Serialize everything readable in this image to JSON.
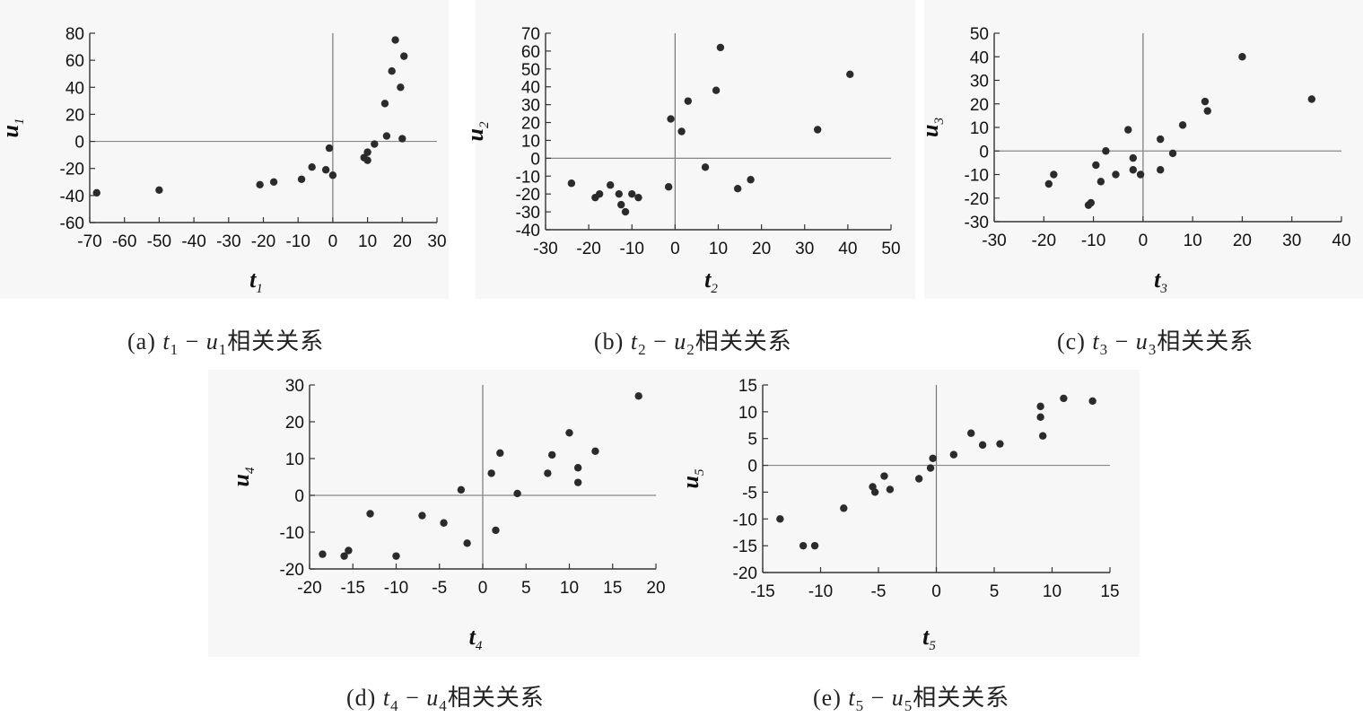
{
  "chart_data": [
    {
      "type": "scatter",
      "xlabel": "t",
      "xsub": "1",
      "ylabel": "u",
      "ysub": "1",
      "xlim": [
        -70,
        30
      ],
      "ylim": [
        -60,
        80
      ],
      "xticks": [
        -70,
        -60,
        -50,
        -40,
        -30,
        -20,
        -10,
        0,
        10,
        20,
        30
      ],
      "yticks": [
        -60,
        -40,
        -20,
        0,
        20,
        40,
        60,
        80
      ],
      "points": [
        [
          -68,
          -38
        ],
        [
          -50,
          -36
        ],
        [
          -21,
          -32
        ],
        [
          -17,
          -30
        ],
        [
          -9,
          -28
        ],
        [
          -6,
          -19
        ],
        [
          -2,
          -21
        ],
        [
          -1,
          -5
        ],
        [
          0,
          -25
        ],
        [
          9,
          -12
        ],
        [
          10,
          -14
        ],
        [
          10,
          -8
        ],
        [
          12,
          -2
        ],
        [
          15,
          28
        ],
        [
          15.5,
          4
        ],
        [
          17,
          52
        ],
        [
          18,
          75
        ],
        [
          19.5,
          40
        ],
        [
          20.5,
          63
        ],
        [
          20,
          2
        ]
      ],
      "caption_label": "(a)",
      "caption_rel": "相关关系"
    },
    {
      "type": "scatter",
      "xlabel": "t",
      "xsub": "2",
      "ylabel": "u",
      "ysub": "2",
      "xlim": [
        -30,
        50
      ],
      "ylim": [
        -40,
        70
      ],
      "xticks": [
        -30,
        -20,
        -10,
        0,
        10,
        20,
        30,
        40,
        50
      ],
      "yticks": [
        -40,
        -30,
        -20,
        -10,
        0,
        10,
        20,
        30,
        40,
        50,
        60,
        70
      ],
      "points": [
        [
          -24,
          -14
        ],
        [
          -18.5,
          -22
        ],
        [
          -17.5,
          -20
        ],
        [
          -15,
          -15
        ],
        [
          -13,
          -20
        ],
        [
          -12.5,
          -26
        ],
        [
          -11.5,
          -30
        ],
        [
          -10,
          -20
        ],
        [
          -8.5,
          -22
        ],
        [
          -1.5,
          -16
        ],
        [
          -1,
          22
        ],
        [
          1.5,
          15
        ],
        [
          3,
          32
        ],
        [
          7,
          -5
        ],
        [
          9.5,
          38
        ],
        [
          10.5,
          62
        ],
        [
          14.5,
          -17
        ],
        [
          17.5,
          -12
        ],
        [
          33,
          16
        ],
        [
          40.5,
          47
        ]
      ],
      "caption_label": "(b)",
      "caption_rel": "相关关系"
    },
    {
      "type": "scatter",
      "xlabel": "t",
      "xsub": "3",
      "ylabel": "u",
      "ysub": "3",
      "xlim": [
        -30,
        40
      ],
      "ylim": [
        -30,
        50
      ],
      "xticks": [
        -30,
        -20,
        -10,
        0,
        10,
        20,
        30,
        40
      ],
      "yticks": [
        -30,
        -20,
        -10,
        0,
        10,
        20,
        30,
        40,
        50
      ],
      "points": [
        [
          -19,
          -14
        ],
        [
          -18,
          -10
        ],
        [
          -11,
          -23
        ],
        [
          -10.5,
          -22
        ],
        [
          -9.5,
          -6
        ],
        [
          -8.5,
          -13
        ],
        [
          -7.5,
          0
        ],
        [
          -5.5,
          -10
        ],
        [
          -3,
          9
        ],
        [
          -2,
          -8
        ],
        [
          -2,
          -3
        ],
        [
          -0.5,
          -10
        ],
        [
          3.5,
          5
        ],
        [
          3.5,
          -8
        ],
        [
          6,
          -1
        ],
        [
          8,
          11
        ],
        [
          12.5,
          21
        ],
        [
          13,
          17
        ],
        [
          20,
          40
        ],
        [
          34,
          22
        ]
      ],
      "caption_label": "(c)",
      "caption_rel": "相关关系"
    },
    {
      "type": "scatter",
      "xlabel": "t",
      "xsub": "4",
      "ylabel": "u",
      "ysub": "4",
      "xlim": [
        -20,
        20
      ],
      "ylim": [
        -20,
        30
      ],
      "xticks": [
        -20,
        -15,
        -10,
        -5,
        0,
        5,
        10,
        15,
        20
      ],
      "yticks": [
        -20,
        -10,
        0,
        10,
        20,
        30
      ],
      "points": [
        [
          -18.5,
          -16
        ],
        [
          -16,
          -16.5
        ],
        [
          -15.5,
          -15
        ],
        [
          -13,
          -5
        ],
        [
          -10,
          -16.5
        ],
        [
          -7,
          -5.5
        ],
        [
          -4.5,
          -7.5
        ],
        [
          -2.5,
          1.5
        ],
        [
          -1.8,
          -13
        ],
        [
          1,
          6
        ],
        [
          1.5,
          -9.5
        ],
        [
          2,
          11.5
        ],
        [
          4,
          0.5
        ],
        [
          7.5,
          6
        ],
        [
          8,
          11
        ],
        [
          10,
          17
        ],
        [
          11,
          7.5
        ],
        [
          11,
          3.5
        ],
        [
          13,
          12
        ],
        [
          18,
          27
        ]
      ],
      "caption_label": "(d)",
      "caption_rel": "相关关系"
    },
    {
      "type": "scatter",
      "xlabel": "t",
      "xsub": "5",
      "ylabel": "u",
      "ysub": "5",
      "xlim": [
        -15,
        15
      ],
      "ylim": [
        -20,
        15
      ],
      "xticks": [
        -15,
        -10,
        -5,
        0,
        5,
        10,
        15
      ],
      "yticks": [
        -20,
        -15,
        -10,
        -5,
        0,
        5,
        10,
        15
      ],
      "points": [
        [
          -13.5,
          -10
        ],
        [
          -11.5,
          -15
        ],
        [
          -10.5,
          -15
        ],
        [
          -8,
          -8
        ],
        [
          -5.5,
          -4
        ],
        [
          -5.3,
          -5
        ],
        [
          -4.5,
          -2
        ],
        [
          -4,
          -4.5
        ],
        [
          -1.5,
          -2.5
        ],
        [
          -0.5,
          -0.5
        ],
        [
          -0.3,
          1.3
        ],
        [
          1.5,
          2
        ],
        [
          3,
          6
        ],
        [
          4,
          3.8
        ],
        [
          5.5,
          4
        ],
        [
          9,
          11
        ],
        [
          9,
          9
        ],
        [
          9.2,
          5.5
        ],
        [
          11,
          12.5
        ],
        [
          13.5,
          12
        ]
      ],
      "caption_label": "(e)",
      "caption_rel": "相关关系"
    }
  ]
}
